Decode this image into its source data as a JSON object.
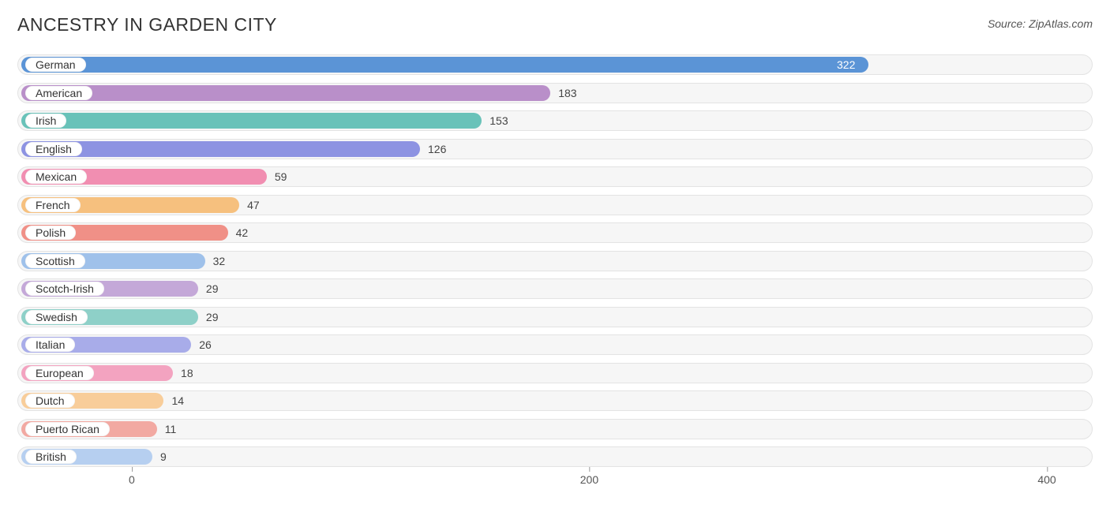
{
  "title": "ANCESTRY IN GARDEN CITY",
  "source_label": "Source: ZipAtlas.com",
  "chart": {
    "type": "bar",
    "x_min": -50,
    "x_max": 420,
    "track_bg": "#f6f6f6",
    "track_border": "#e3e3e3",
    "pill_bg": "#ffffff",
    "label_fontsize": 14,
    "value_fontsize": 14,
    "value_color": "#444444",
    "ticks": [
      {
        "value": 0,
        "label": "0"
      },
      {
        "value": 200,
        "label": "200"
      },
      {
        "value": 400,
        "label": "400"
      }
    ],
    "bars": [
      {
        "label": "German",
        "value": 322,
        "color": "#5b94d6",
        "value_color_override": "#ffffff",
        "value_inside": true
      },
      {
        "label": "American",
        "value": 183,
        "color": "#b98fc9"
      },
      {
        "label": "Irish",
        "value": 153,
        "color": "#69c2b9"
      },
      {
        "label": "English",
        "value": 126,
        "color": "#8d93e2"
      },
      {
        "label": "Mexican",
        "value": 59,
        "color": "#f18eb1"
      },
      {
        "label": "French",
        "value": 47,
        "color": "#f6c07e"
      },
      {
        "label": "Polish",
        "value": 42,
        "color": "#f09087"
      },
      {
        "label": "Scottish",
        "value": 32,
        "color": "#9fc1ea"
      },
      {
        "label": "Scotch-Irish",
        "value": 29,
        "color": "#c4a8d8"
      },
      {
        "label": "Swedish",
        "value": 29,
        "color": "#8ed0c8"
      },
      {
        "label": "Italian",
        "value": 26,
        "color": "#a8ace9"
      },
      {
        "label": "European",
        "value": 18,
        "color": "#f3a3c0"
      },
      {
        "label": "Dutch",
        "value": 14,
        "color": "#f8cd9a"
      },
      {
        "label": "Puerto Rican",
        "value": 11,
        "color": "#f2a9a2"
      },
      {
        "label": "British",
        "value": 9,
        "color": "#b6cff0"
      }
    ]
  }
}
